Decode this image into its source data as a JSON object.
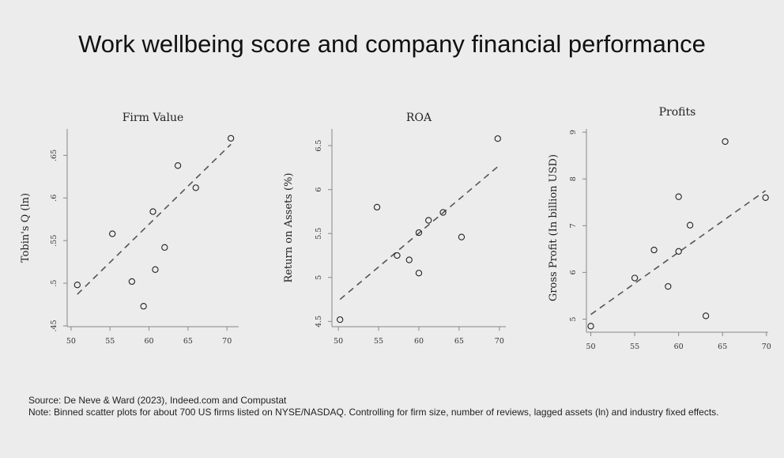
{
  "title": "Work wellbeing score and company financial performance",
  "source_line": "Source: De Neve & Ward (2023), Indeed.com and Compustat",
  "note_line": "Note: Binned scatter plots for about 700 US firms listed on NYSE/NASDAQ. Controlling for firm size, number of reviews, lagged assets (ln) and industry fixed effects.",
  "chart_data": [
    {
      "type": "scatter",
      "title": "Firm Value",
      "xlabel": "",
      "ylabel": "Tobin's Q (ln)",
      "xlim": [
        49.5,
        71.5
      ],
      "ylim": [
        0.449,
        0.681
      ],
      "xticks": [
        50,
        55,
        60,
        65,
        70
      ],
      "xtick_labels": [
        "50",
        "55",
        "60",
        "65",
        "70"
      ],
      "yticks": [
        0.45,
        0.5,
        0.55,
        0.6,
        0.65
      ],
      "ytick_labels": [
        ".45",
        ".5",
        ".55",
        ".6",
        ".65"
      ],
      "points": [
        {
          "x": 50.8,
          "y": 0.498
        },
        {
          "x": 55.3,
          "y": 0.558
        },
        {
          "x": 57.8,
          "y": 0.502
        },
        {
          "x": 59.3,
          "y": 0.473
        },
        {
          "x": 60.5,
          "y": 0.584
        },
        {
          "x": 60.8,
          "y": 0.516
        },
        {
          "x": 62.0,
          "y": 0.542
        },
        {
          "x": 63.7,
          "y": 0.638
        },
        {
          "x": 66.0,
          "y": 0.612
        },
        {
          "x": 70.5,
          "y": 0.67
        }
      ],
      "fit_line": [
        [
          50.8,
          0.487
        ],
        [
          70.5,
          0.663
        ]
      ]
    },
    {
      "type": "scatter",
      "title": "ROA",
      "xlabel": "",
      "ylabel": "Return on Assets (%)",
      "xlim": [
        49.2,
        70.8
      ],
      "ylim": [
        4.44,
        6.69
      ],
      "xticks": [
        50,
        55,
        60,
        65,
        70
      ],
      "xtick_labels": [
        "50",
        "55",
        "60",
        "65",
        "70"
      ],
      "yticks": [
        4.5,
        5,
        5.5,
        6,
        6.5
      ],
      "ytick_labels": [
        "4.5",
        "5",
        "5.5",
        "6",
        "6.5"
      ],
      "points": [
        {
          "x": 50.2,
          "y": 4.52
        },
        {
          "x": 54.8,
          "y": 5.8
        },
        {
          "x": 57.3,
          "y": 5.25
        },
        {
          "x": 58.8,
          "y": 5.2
        },
        {
          "x": 60.0,
          "y": 5.05
        },
        {
          "x": 60.0,
          "y": 5.51
        },
        {
          "x": 61.2,
          "y": 5.65
        },
        {
          "x": 63.0,
          "y": 5.74
        },
        {
          "x": 65.3,
          "y": 5.46
        },
        {
          "x": 69.8,
          "y": 6.58
        }
      ],
      "fit_line": [
        [
          50.2,
          4.75
        ],
        [
          69.8,
          6.26
        ]
      ]
    },
    {
      "type": "scatter",
      "title": "Profits",
      "xlabel": "",
      "ylabel": "Gross Profit (In billion USD)",
      "xlim": [
        49.5,
        70.2
      ],
      "ylim": [
        4.72,
        9.07
      ],
      "xticks": [
        50,
        55,
        60,
        65,
        70
      ],
      "xtick_labels": [
        "50",
        "55",
        "60",
        "65",
        "70"
      ],
      "yticks": [
        5,
        6,
        7,
        8,
        9
      ],
      "ytick_labels": [
        "5",
        "6",
        "7",
        "8",
        "9"
      ],
      "points": [
        {
          "x": 50.0,
          "y": 4.85
        },
        {
          "x": 55.0,
          "y": 5.88
        },
        {
          "x": 57.2,
          "y": 6.48
        },
        {
          "x": 58.8,
          "y": 5.7
        },
        {
          "x": 60.0,
          "y": 6.45
        },
        {
          "x": 60.0,
          "y": 7.62
        },
        {
          "x": 61.3,
          "y": 7.01
        },
        {
          "x": 63.1,
          "y": 5.07
        },
        {
          "x": 65.3,
          "y": 8.8
        },
        {
          "x": 69.9,
          "y": 7.6
        }
      ],
      "fit_line": [
        [
          50.0,
          5.1
        ],
        [
          69.9,
          7.75
        ]
      ]
    }
  ]
}
